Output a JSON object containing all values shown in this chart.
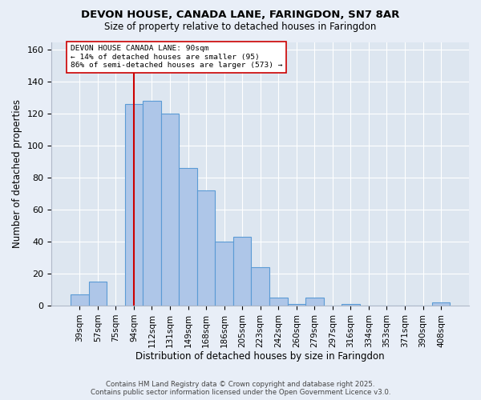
{
  "title1": "DEVON HOUSE, CANADA LANE, FARINGDON, SN7 8AR",
  "title2": "Size of property relative to detached houses in Faringdon",
  "xlabel": "Distribution of detached houses by size in Faringdon",
  "ylabel": "Number of detached properties",
  "bar_labels": [
    "39sqm",
    "57sqm",
    "75sqm",
    "94sqm",
    "112sqm",
    "131sqm",
    "149sqm",
    "168sqm",
    "186sqm",
    "205sqm",
    "223sqm",
    "242sqm",
    "260sqm",
    "279sqm",
    "297sqm",
    "316sqm",
    "334sqm",
    "353sqm",
    "371sqm",
    "390sqm",
    "408sqm"
  ],
  "bar_values": [
    7,
    15,
    0,
    126,
    128,
    120,
    86,
    72,
    40,
    43,
    24,
    5,
    1,
    5,
    0,
    1,
    0,
    0,
    0,
    0,
    2
  ],
  "bar_color": "#aec6e8",
  "bar_edge_color": "#5b9bd5",
  "vline_x": 3,
  "vline_color": "#cc0000",
  "annotation_box_text": "DEVON HOUSE CANADA LANE: 90sqm\n← 14% of detached houses are smaller (95)\n86% of semi-detached houses are larger (573) →",
  "ylim": [
    0,
    165
  ],
  "yticks": [
    0,
    20,
    40,
    60,
    80,
    100,
    120,
    140,
    160
  ],
  "footer_text": "Contains HM Land Registry data © Crown copyright and database right 2025.\nContains public sector information licensed under the Open Government Licence v3.0.",
  "background_color": "#e8eef7",
  "plot_background_color": "#dde6f0"
}
